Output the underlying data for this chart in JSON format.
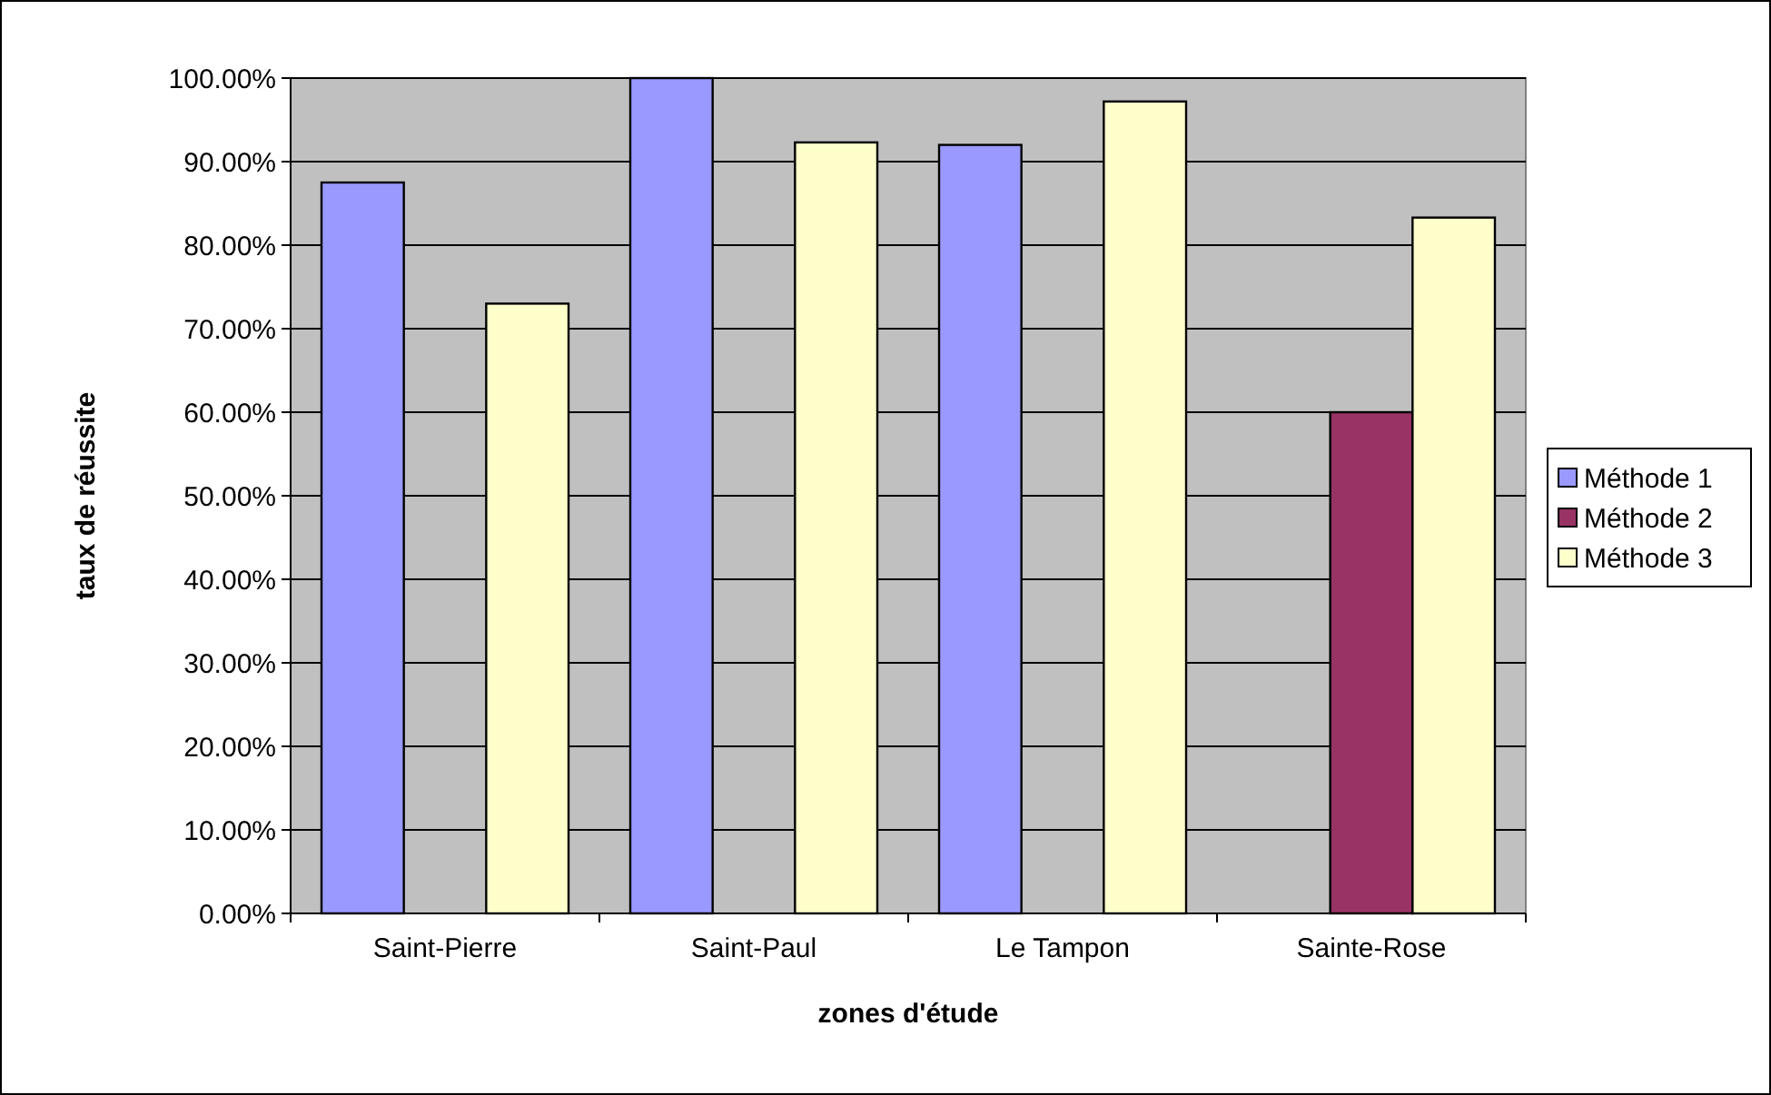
{
  "chart_data": {
    "type": "bar",
    "xlabel": "zones d'étude",
    "ylabel": "taux de réussite",
    "categories": [
      "Saint-Pierre",
      "Saint-Paul",
      "Le Tampon",
      "Sainte-Rose"
    ],
    "series": [
      {
        "name": "Méthode 1",
        "color": "#9999ff",
        "values": [
          87.5,
          100,
          92,
          null
        ]
      },
      {
        "name": "Méthode 2",
        "color": "#993366",
        "values": [
          null,
          null,
          null,
          60
        ]
      },
      {
        "name": "Méthode 3",
        "color": "#ffffcc",
        "values": [
          73,
          92.3,
          97.2,
          83.3
        ]
      }
    ],
    "ylim": [
      0,
      100
    ],
    "yticks": [
      {
        "value": 0,
        "label": "0.00%"
      },
      {
        "value": 10,
        "label": "10.00%"
      },
      {
        "value": 20,
        "label": "20.00%"
      },
      {
        "value": 30,
        "label": "30.00%"
      },
      {
        "value": 40,
        "label": "40.00%"
      },
      {
        "value": 50,
        "label": "50.00%"
      },
      {
        "value": 60,
        "label": "60.00%"
      },
      {
        "value": 70,
        "label": "70.00%"
      },
      {
        "value": 80,
        "label": "80.00%"
      },
      {
        "value": 90,
        "label": "90.00%"
      },
      {
        "value": 100,
        "label": "100.00%"
      }
    ],
    "grid": "y",
    "legend": "right"
  }
}
